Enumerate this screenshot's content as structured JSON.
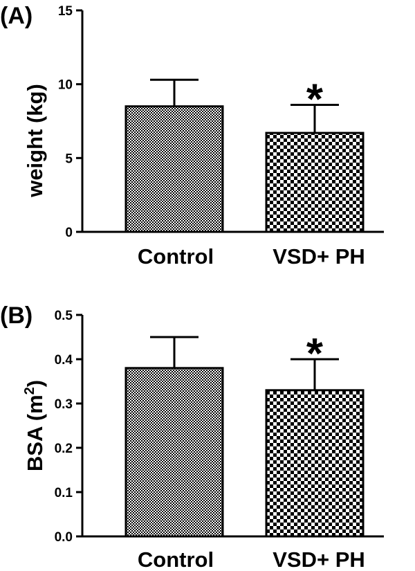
{
  "chart_data": [
    {
      "type": "bar",
      "panel": "(A)",
      "categories": [
        "Control",
        "VSD+ PH"
      ],
      "values": [
        8.5,
        6.7
      ],
      "errors": [
        1.8,
        1.9
      ],
      "significance": [
        "",
        "*"
      ],
      "ylabel": "weight (kg)",
      "ylim": [
        0,
        15
      ],
      "yticks": [
        "0",
        "5",
        "10",
        "15"
      ],
      "ytick_values": [
        0,
        5,
        10,
        15
      ]
    },
    {
      "type": "bar",
      "panel": "(B)",
      "categories": [
        "Control",
        "VSD+ PH"
      ],
      "values": [
        0.38,
        0.33
      ],
      "errors": [
        0.07,
        0.07
      ],
      "significance": [
        "",
        "*"
      ],
      "ylabel": "BSA (m",
      "ylabel_superscript": "2",
      "ylabel_close": ")",
      "ylim": [
        0,
        0.5
      ],
      "yticks": [
        "0.0",
        "0.1",
        "0.2",
        "0.3",
        "0.4",
        "0.5"
      ],
      "ytick_values": [
        0,
        0.1,
        0.2,
        0.3,
        0.4,
        0.5
      ]
    }
  ]
}
